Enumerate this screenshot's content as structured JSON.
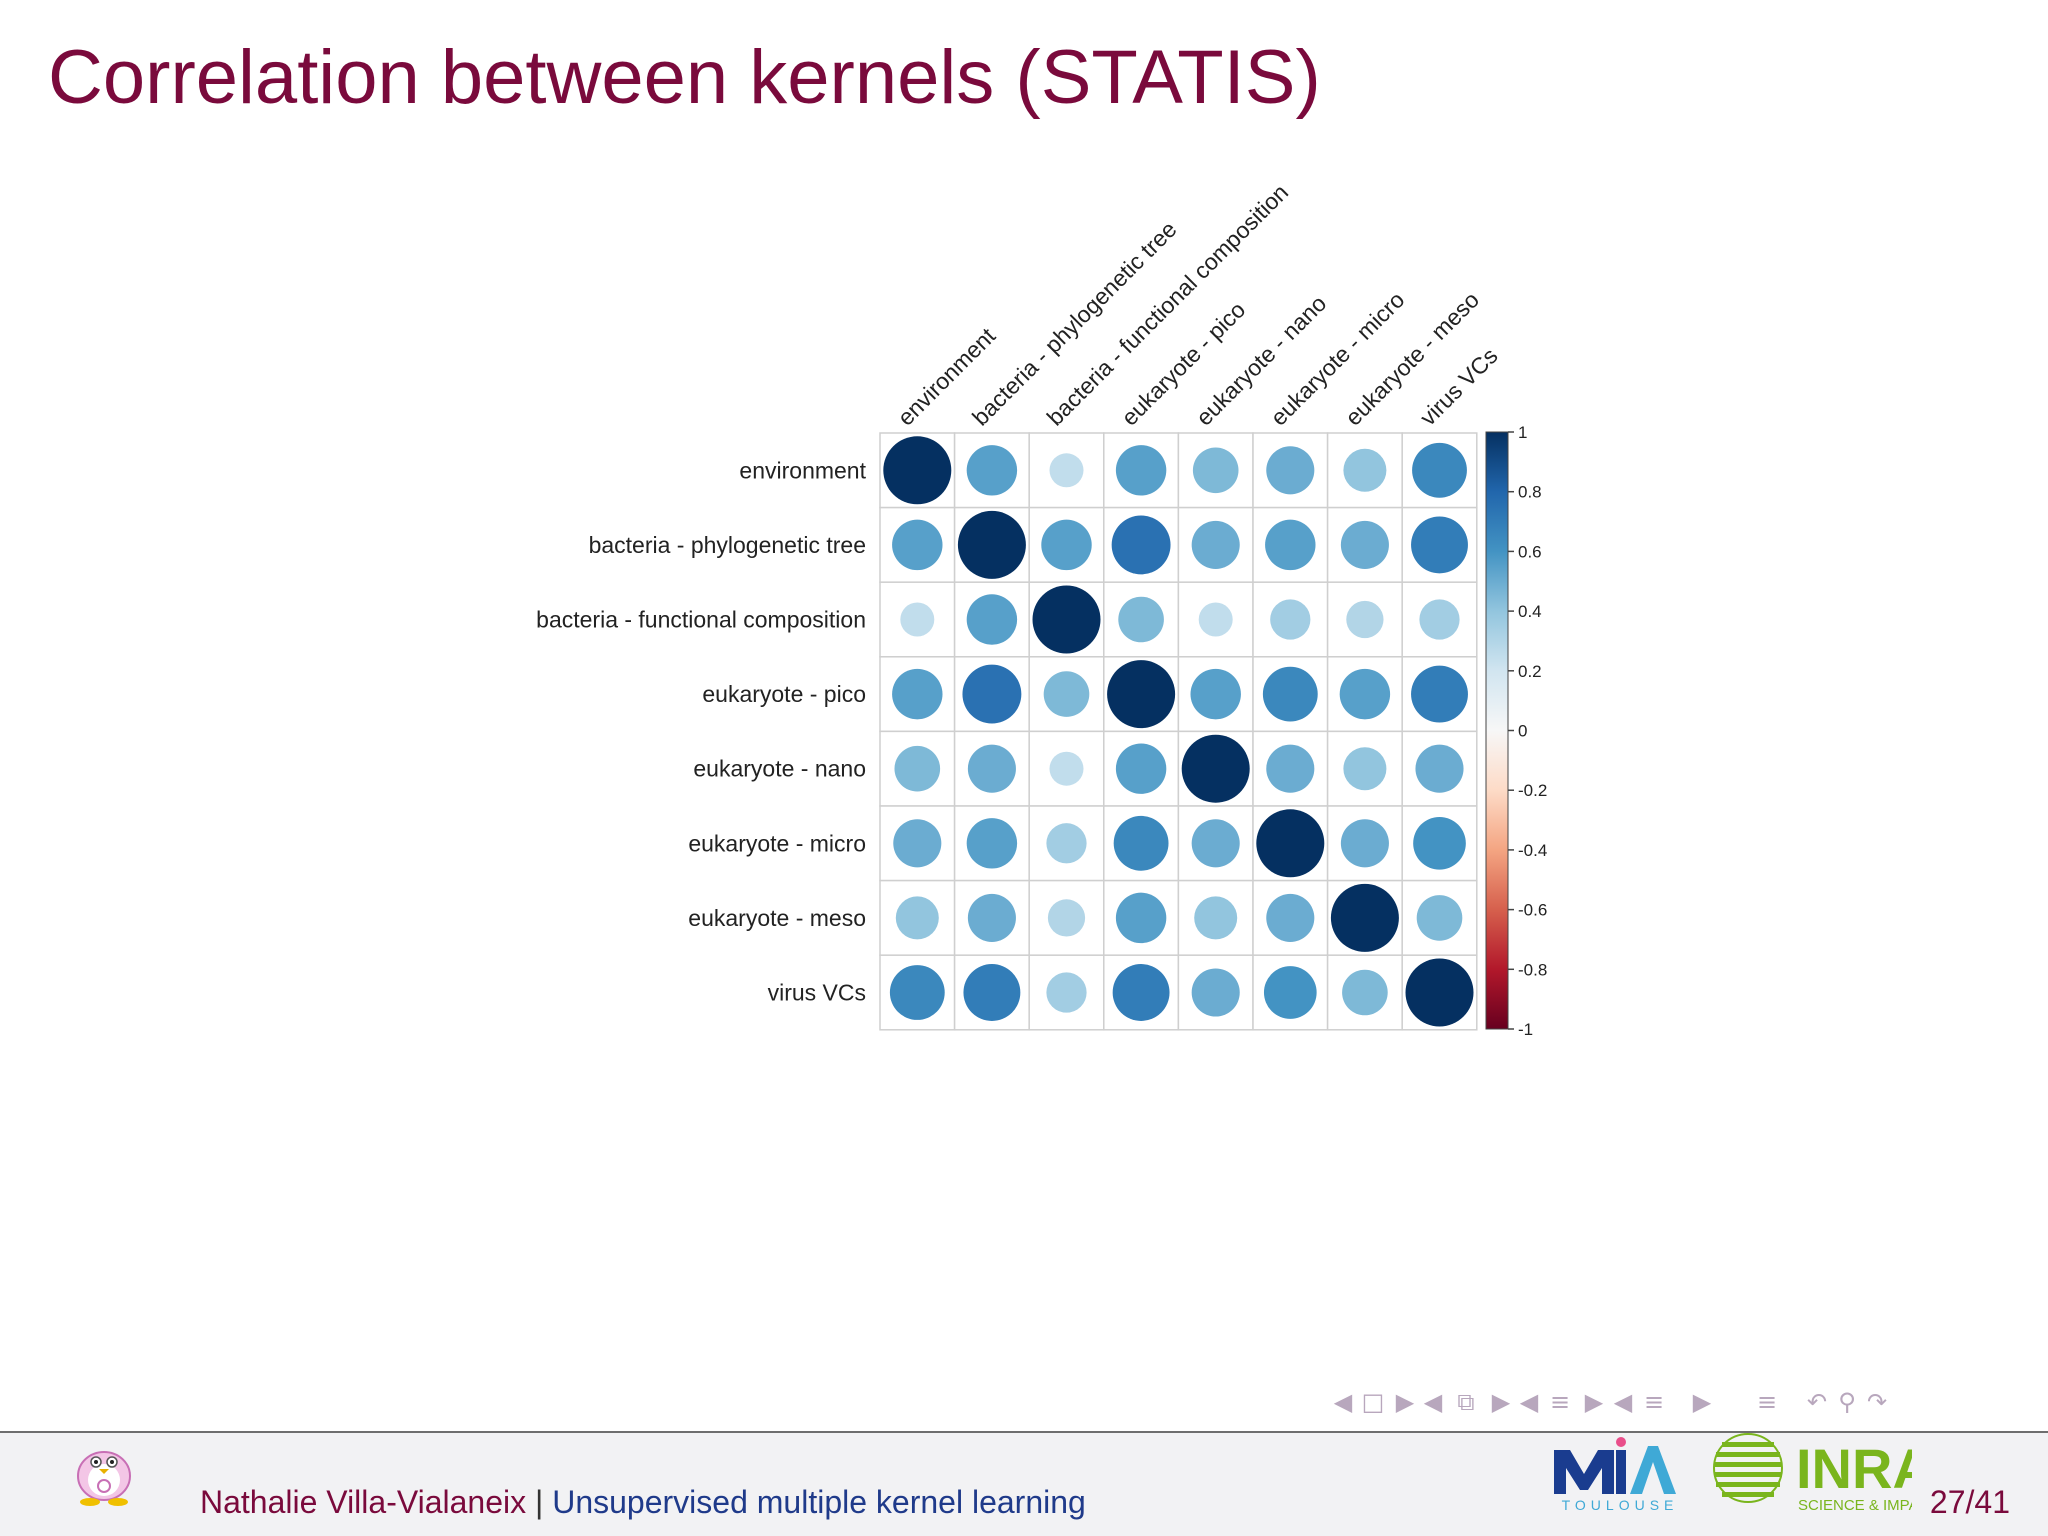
{
  "slide": {
    "title": "Correlation between kernels (STATIS)",
    "page": "27/41"
  },
  "footer": {
    "author": "Nathalie Villa-Vialaneix",
    "separator": "|",
    "talk_title": "Unsupervised multiple kernel learning"
  },
  "logos": {
    "mia_text": "MIA",
    "mia_subtext": "TOULOUSE",
    "inra_text": "INRA",
    "inra_subtext": "SCIENCE & IMPACT"
  },
  "colors": {
    "title": "#7a0a3c",
    "footer_author": "#7a0a3c",
    "footer_talk": "#1f3a8a",
    "nav_icons": "#b8a7bd",
    "scale_max": "#053061",
    "scale_mid": "#f7f7f7",
    "scale_min": "#67001f"
  },
  "nav_icons": [
    "arrow-left-icon",
    "frame-icon",
    "arrow-right-icon",
    "arrow-left-icon",
    "frames-icon",
    "arrow-right-icon",
    "arrow-left-icon",
    "section-icon",
    "arrow-right-icon",
    "arrow-left-icon",
    "subsection-icon",
    "arrow-right-icon",
    "align-icon",
    "undo-icon",
    "search-icon",
    "redo-icon"
  ],
  "chart_data": {
    "type": "heatmap",
    "style": "corrplot circles (area and color encode correlation)",
    "labels": [
      "environment",
      "bacteria - phylogenetic tree",
      "bacteria - functional composition",
      "eukaryote - pico",
      "eukaryote - nano",
      "eukaryote - micro",
      "eukaryote - meso",
      "virus VCs"
    ],
    "matrix": [
      [
        1.0,
        0.55,
        0.25,
        0.55,
        0.45,
        0.5,
        0.4,
        0.65
      ],
      [
        0.55,
        1.0,
        0.55,
        0.75,
        0.5,
        0.55,
        0.5,
        0.7
      ],
      [
        0.25,
        0.55,
        1.0,
        0.45,
        0.25,
        0.35,
        0.3,
        0.35
      ],
      [
        0.55,
        0.75,
        0.45,
        1.0,
        0.55,
        0.65,
        0.55,
        0.7
      ],
      [
        0.45,
        0.5,
        0.25,
        0.55,
        1.0,
        0.5,
        0.4,
        0.5
      ],
      [
        0.5,
        0.55,
        0.35,
        0.65,
        0.5,
        1.0,
        0.5,
        0.6
      ],
      [
        0.4,
        0.5,
        0.3,
        0.55,
        0.4,
        0.5,
        1.0,
        0.45
      ],
      [
        0.65,
        0.7,
        0.35,
        0.7,
        0.5,
        0.6,
        0.45,
        1.0
      ]
    ],
    "colorbar": {
      "range": [
        -1,
        1
      ],
      "tick_labels": [
        "1",
        "0.8",
        "0.6",
        "0.4",
        "0.2",
        "0",
        "-0.2",
        "-0.4",
        "-0.6",
        "-0.8",
        "-1"
      ]
    }
  }
}
